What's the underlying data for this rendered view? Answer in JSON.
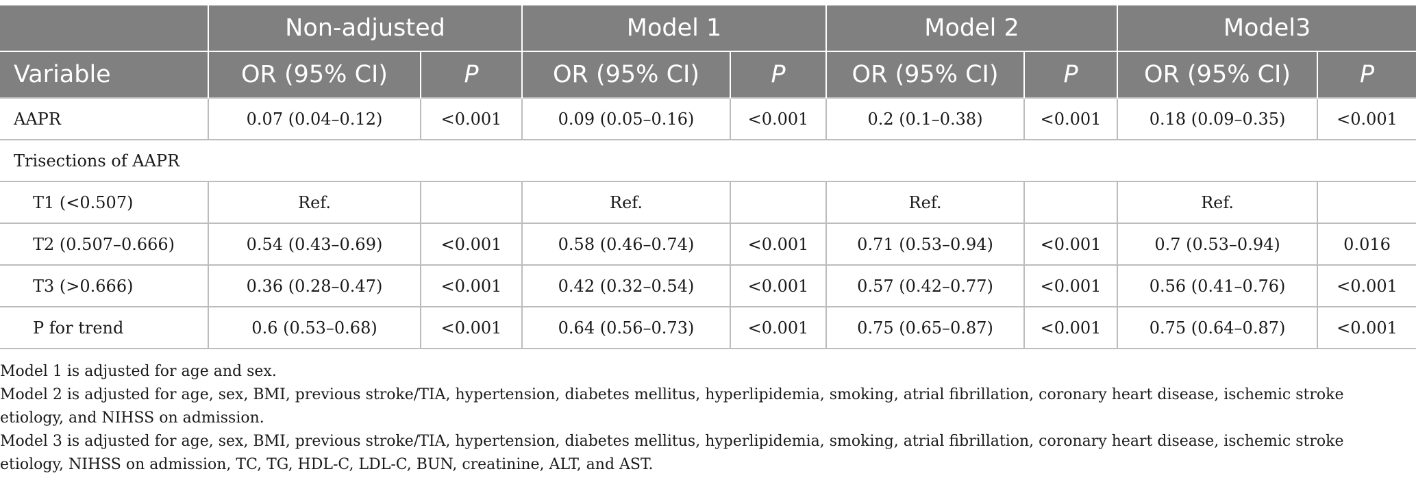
{
  "table": {
    "group_headers": [
      "Non-adjusted",
      "Model 1",
      "Model 2",
      "Model3"
    ],
    "sub_headers": {
      "variable": "Variable",
      "or": "OR (95% CI)",
      "p": "P"
    },
    "rows": [
      {
        "label": "AAPR",
        "cells": [
          "0.07 (0.04–0.12)",
          "<0.001",
          "0.09 (0.05–0.16)",
          "<0.001",
          "0.2 (0.1–0.38)",
          "<0.001",
          "0.18 (0.09–0.35)",
          "<0.001"
        ]
      },
      {
        "label": "Trisections of AAPR",
        "section": true
      },
      {
        "label": "T1 (<0.507)",
        "cells": [
          "Ref.",
          "",
          "Ref.",
          "",
          "Ref.",
          "",
          "Ref.",
          ""
        ]
      },
      {
        "label": "T2 (0.507–0.666)",
        "cells": [
          "0.54 (0.43–0.69)",
          "<0.001",
          "0.58 (0.46–0.74)",
          "<0.001",
          "0.71 (0.53–0.94)",
          "<0.001",
          "0.7 (0.53–0.94)",
          "0.016"
        ]
      },
      {
        "label": "T3 (>0.666)",
        "cells": [
          "0.36 (0.28–0.47)",
          "<0.001",
          "0.42 (0.32–0.54)",
          "<0.001",
          "0.57 (0.42–0.77)",
          "<0.001",
          "0.56 (0.41–0.76)",
          "<0.001"
        ]
      },
      {
        "label": "P for trend",
        "cells": [
          "0.6 (0.53–0.68)",
          "<0.001",
          "0.64 (0.56–0.73)",
          "<0.001",
          "0.75 (0.65–0.87)",
          "<0.001",
          "0.75 (0.64–0.87)",
          "<0.001"
        ]
      }
    ]
  },
  "notes": [
    "Model 1 is adjusted for age and sex.",
    "Model 2 is adjusted for age, sex, BMI, previous stroke/TIA, hypertension, diabetes mellitus, hyperlipidemia, smoking, atrial fibrillation, coronary heart disease, ischemic stroke etiology, and NIHSS on admission.",
    "Model 3 is adjusted for age, sex, BMI, previous stroke/TIA, hypertension, diabetes mellitus, hyperlipidemia, smoking, atrial fibrillation, coronary heart disease, ischemic stroke etiology, NIHSS on admission, TC, TG, HDL-C, LDL-C, BUN, creatinine, ALT, and AST."
  ]
}
